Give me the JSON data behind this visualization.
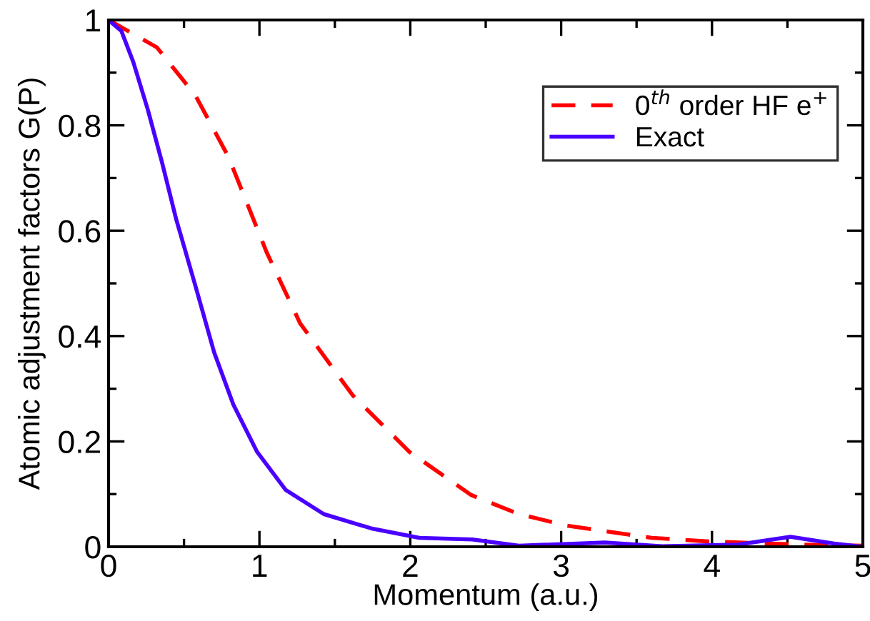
{
  "chart_data": {
    "type": "line",
    "xlabel": "Momentum (a.u.)",
    "ylabel": "Atomic adjustment factors G(P)",
    "xlim": [
      0,
      5
    ],
    "ylim": [
      0,
      1
    ],
    "xticks": [
      0,
      1,
      2,
      3,
      4,
      5
    ],
    "yticks": [
      0,
      0.2,
      0.4,
      0.6,
      0.8,
      1
    ],
    "grid": false,
    "legend": "top right",
    "marker": "none",
    "series": [
      {
        "name": "0$^{th}$ order HF e$^{+}$",
        "color": "#ff0000",
        "line_style": "dashed",
        "x": [
          0,
          0.32,
          0.575,
          0.795,
          1.048,
          1.27,
          1.617,
          1.995,
          2.405,
          2.72,
          3.04,
          3.6,
          3.98,
          4.61,
          5
        ],
        "values": [
          1,
          0.948,
          0.857,
          0.74,
          0.559,
          0.424,
          0.288,
          0.18,
          0.098,
          0.062,
          0.04,
          0.017,
          0.01,
          0.004,
          0.002
        ]
      },
      {
        "name": "Exact",
        "color": "#4a00ff",
        "line_style": "solid",
        "x": [
          0,
          0.085,
          0.164,
          0.26,
          0.353,
          0.448,
          0.575,
          0.7,
          0.827,
          0.985,
          1.174,
          1.427,
          1.74,
          2.06,
          2.41,
          2.72,
          3.29,
          3.67,
          4.17,
          4.52,
          4.81,
          5
        ],
        "values": [
          1,
          0.979,
          0.92,
          0.83,
          0.731,
          0.622,
          0.496,
          0.369,
          0.27,
          0.18,
          0.108,
          0.062,
          0.035,
          0.017,
          0.014,
          0.002,
          0.008,
          0.001,
          0.004,
          0.019,
          0.006,
          0
        ]
      }
    ]
  }
}
